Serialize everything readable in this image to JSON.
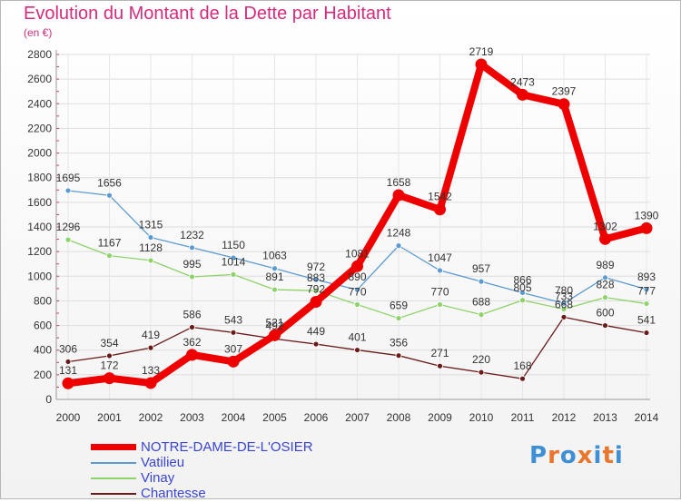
{
  "chart_data": {
    "type": "line",
    "title": "Evolution du Montant de la Dette par Habitant",
    "subtitle": "(en €)",
    "ylim": [
      0,
      2800
    ],
    "yticks": [
      0,
      200,
      400,
      600,
      800,
      1000,
      1200,
      1400,
      1600,
      1800,
      2000,
      2200,
      2400,
      2600,
      2800
    ],
    "categories": [
      "2000",
      "2001",
      "2002",
      "2003",
      "2004",
      "2005",
      "2006",
      "2007",
      "2008",
      "2009",
      "2010",
      "2011",
      "2012",
      "2013",
      "2014"
    ],
    "grid": true,
    "legend_position": "bottom-left",
    "series": [
      {
        "name": "Chantesse",
        "color": "#6b1a1a",
        "values": [
          306,
          354,
          419,
          586,
          543,
          492,
          449,
          401,
          356,
          271,
          220,
          168,
          668,
          600,
          541
        ]
      },
      {
        "name": "Vinay",
        "color": "#8ed26a",
        "values": [
          1296,
          1167,
          1128,
          995,
          1014,
          891,
          883,
          770,
          659,
          770,
          688,
          805,
          733,
          828,
          777
        ]
      },
      {
        "name": "Vatilieu",
        "color": "#5c9bd1",
        "values": [
          1695,
          1656,
          1315,
          1232,
          1150,
          1063,
          972,
          890,
          1248,
          1047,
          957,
          866,
          780,
          989,
          893
        ]
      },
      {
        "name": "NOTRE-DAME-DE-L'OSIER",
        "color": "#ee0000",
        "values": [
          131,
          172,
          133,
          362,
          307,
          521,
          792,
          1081,
          1658,
          1542,
          2719,
          2473,
          2397,
          1302,
          1390
        ]
      }
    ]
  },
  "legend": [
    {
      "name": "NOTRE-DAME-DE-L'OSIER",
      "color": "#ee0000"
    },
    {
      "name": "Vatilieu",
      "color": "#5c9bd1"
    },
    {
      "name": "Vinay",
      "color": "#8ed26a"
    },
    {
      "name": "Chantesse",
      "color": "#6b1a1a"
    }
  ],
  "logo": {
    "text": "Proxiti",
    "letters": [
      "P",
      "r",
      "o",
      "x",
      "i",
      "t",
      "i"
    ],
    "colors": [
      "#3f8fd4",
      "#e8762c",
      "#3f8fd4",
      "#e8762c",
      "#3f8fd4",
      "#e8762c",
      "#3f8fd4"
    ]
  }
}
